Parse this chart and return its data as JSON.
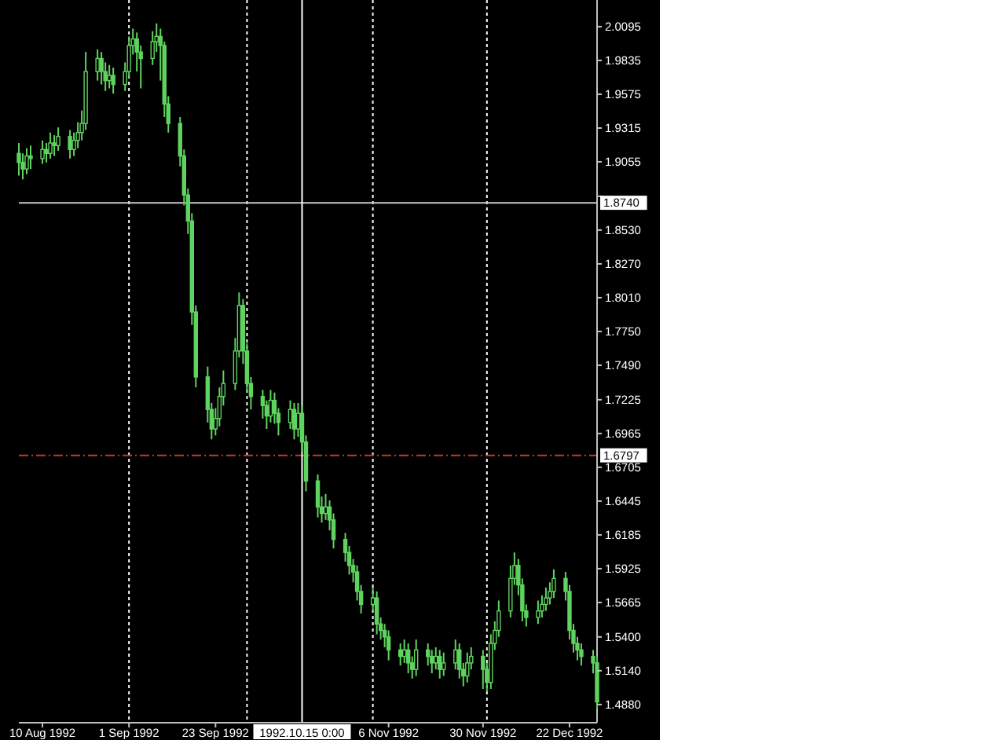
{
  "chart_data": {
    "type": "candlestick",
    "color": "#5fd35f",
    "x": [
      "1992-08-04",
      "1992-08-05",
      "1992-08-06",
      "1992-08-07",
      "1992-08-10",
      "1992-08-11",
      "1992-08-12",
      "1992-08-13",
      "1992-08-14",
      "1992-08-17",
      "1992-08-18",
      "1992-08-19",
      "1992-08-20",
      "1992-08-21",
      "1992-08-24",
      "1992-08-25",
      "1992-08-26",
      "1992-08-27",
      "1992-08-28",
      "1992-08-31",
      "1992-09-01",
      "1992-09-02",
      "1992-09-03",
      "1992-09-04",
      "1992-09-07",
      "1992-09-08",
      "1992-09-09",
      "1992-09-10",
      "1992-09-11",
      "1992-09-14",
      "1992-09-15",
      "1992-09-16",
      "1992-09-17",
      "1992-09-18",
      "1992-09-21",
      "1992-09-22",
      "1992-09-23",
      "1992-09-24",
      "1992-09-25",
      "1992-09-28",
      "1992-09-29",
      "1992-09-30",
      "1992-10-01",
      "1992-10-02",
      "1992-10-05",
      "1992-10-06",
      "1992-10-07",
      "1992-10-08",
      "1992-10-09",
      "1992-10-12",
      "1992-10-13",
      "1992-10-14",
      "1992-10-15",
      "1992-10-16",
      "1992-10-19",
      "1992-10-20",
      "1992-10-21",
      "1992-10-22",
      "1992-10-23",
      "1992-10-26",
      "1992-10-27",
      "1992-10-28",
      "1992-10-29",
      "1992-10-30",
      "1992-11-02",
      "1992-11-03",
      "1992-11-04",
      "1992-11-05",
      "1992-11-06",
      "1992-11-09",
      "1992-11-10",
      "1992-11-11",
      "1992-11-12",
      "1992-11-13",
      "1992-11-16",
      "1992-11-17",
      "1992-11-18",
      "1992-11-19",
      "1992-11-20",
      "1992-11-23",
      "1992-11-24",
      "1992-11-25",
      "1992-11-26",
      "1992-11-27",
      "1992-11-30",
      "1992-12-01",
      "1992-12-02",
      "1992-12-03",
      "1992-12-04",
      "1992-12-07",
      "1992-12-08",
      "1992-12-09",
      "1992-12-10",
      "1992-12-11",
      "1992-12-14",
      "1992-12-15",
      "1992-12-16",
      "1992-12-17",
      "1992-12-18",
      "1992-12-21",
      "1992-12-22",
      "1992-12-23",
      "1992-12-24",
      "1992-12-25",
      "1992-12-28",
      "1992-12-29"
    ],
    "ohlc": [
      [
        1.912,
        1.92,
        1.895,
        1.905
      ],
      [
        1.905,
        1.912,
        1.892,
        1.9
      ],
      [
        1.9,
        1.916,
        1.896,
        1.91
      ],
      [
        1.91,
        1.918,
        1.9,
        1.908
      ],
      [
        1.908,
        1.922,
        1.904,
        1.915
      ],
      [
        1.915,
        1.92,
        1.905,
        1.912
      ],
      [
        1.912,
        1.928,
        1.908,
        1.92
      ],
      [
        1.92,
        1.926,
        1.91,
        1.918
      ],
      [
        1.918,
        1.932,
        1.914,
        1.925
      ],
      [
        1.925,
        1.93,
        1.908,
        1.915
      ],
      [
        1.915,
        1.928,
        1.91,
        1.922
      ],
      [
        1.922,
        1.936,
        1.916,
        1.928
      ],
      [
        1.928,
        1.945,
        1.922,
        1.935
      ],
      [
        1.935,
        1.99,
        1.93,
        1.975
      ],
      [
        1.975,
        1.992,
        1.968,
        1.985
      ],
      [
        1.985,
        1.99,
        1.965,
        1.975
      ],
      [
        1.975,
        1.982,
        1.96,
        1.968
      ],
      [
        1.968,
        1.98,
        1.962,
        1.972
      ],
      [
        1.972,
        1.978,
        1.958,
        1.965
      ],
      [
        1.965,
        1.982,
        1.96,
        1.975
      ],
      [
        1.975,
        2.002,
        1.97,
        1.995
      ],
      [
        1.995,
        2.008,
        1.988,
        2.0
      ],
      [
        2.0,
        2.005,
        1.975,
        1.99
      ],
      [
        1.99,
        1.995,
        1.962,
        1.985
      ],
      [
        1.985,
        2.006,
        1.98,
        1.998
      ],
      [
        1.998,
        2.012,
        1.99,
        2.002
      ],
      [
        2.002,
        2.008,
        1.968,
        1.995
      ],
      [
        1.995,
        1.998,
        1.94,
        1.95
      ],
      [
        1.95,
        1.956,
        1.928,
        1.935
      ],
      [
        1.935,
        1.94,
        1.902,
        1.91
      ],
      [
        1.91,
        1.915,
        1.872,
        1.88
      ],
      [
        1.88,
        1.885,
        1.85,
        1.86
      ],
      [
        1.86,
        1.866,
        1.78,
        1.79
      ],
      [
        1.79,
        1.795,
        1.732,
        1.74
      ],
      [
        1.74,
        1.748,
        1.705,
        1.715
      ],
      [
        1.715,
        1.72,
        1.692,
        1.7
      ],
      [
        1.7,
        1.716,
        1.695,
        1.708
      ],
      [
        1.708,
        1.732,
        1.702,
        1.725
      ],
      [
        1.725,
        1.745,
        1.718,
        1.735
      ],
      [
        1.735,
        1.77,
        1.73,
        1.76
      ],
      [
        1.76,
        1.805,
        1.755,
        1.795
      ],
      [
        1.795,
        1.8,
        1.75,
        1.76
      ],
      [
        1.76,
        1.766,
        1.728,
        1.735
      ],
      [
        1.735,
        1.74,
        1.715,
        1.725
      ],
      [
        1.725,
        1.73,
        1.708,
        1.718
      ],
      [
        1.718,
        1.722,
        1.7,
        1.71
      ],
      [
        1.71,
        1.73,
        1.705,
        1.722
      ],
      [
        1.722,
        1.728,
        1.704,
        1.712
      ],
      [
        1.712,
        1.716,
        1.695,
        1.705
      ],
      [
        1.705,
        1.722,
        1.7,
        1.715
      ],
      [
        1.715,
        1.72,
        1.692,
        1.7
      ],
      [
        1.7,
        1.72,
        1.694,
        1.712
      ],
      [
        1.712,
        1.718,
        1.682,
        1.69
      ],
      [
        1.69,
        1.695,
        1.652,
        1.66
      ],
      [
        1.66,
        1.665,
        1.632,
        1.64
      ],
      [
        1.64,
        1.648,
        1.628,
        1.635
      ],
      [
        1.635,
        1.65,
        1.63,
        1.64
      ],
      [
        1.64,
        1.645,
        1.622,
        1.63
      ],
      [
        1.63,
        1.635,
        1.608,
        1.615
      ],
      [
        1.615,
        1.62,
        1.598,
        1.605
      ],
      [
        1.605,
        1.61,
        1.588,
        1.595
      ],
      [
        1.595,
        1.6,
        1.582,
        1.59
      ],
      [
        1.59,
        1.595,
        1.568,
        1.575
      ],
      [
        1.575,
        1.58,
        1.558,
        1.565
      ],
      [
        1.565,
        1.578,
        1.56,
        1.57
      ],
      [
        1.57,
        1.575,
        1.542,
        1.55
      ],
      [
        1.55,
        1.555,
        1.538,
        1.545
      ],
      [
        1.545,
        1.55,
        1.532,
        1.54
      ],
      [
        1.54,
        1.545,
        1.522,
        1.53
      ],
      [
        1.53,
        1.535,
        1.518,
        1.525
      ],
      [
        1.525,
        1.538,
        1.52,
        1.53
      ],
      [
        1.53,
        1.535,
        1.512,
        1.52
      ],
      [
        1.52,
        1.525,
        1.508,
        1.515
      ],
      [
        1.515,
        1.538,
        1.51,
        1.53
      ],
      [
        1.53,
        1.535,
        1.518,
        1.525
      ],
      [
        1.525,
        1.53,
        1.512,
        1.52
      ],
      [
        1.52,
        1.532,
        1.515,
        1.525
      ],
      [
        1.525,
        1.53,
        1.508,
        1.515
      ],
      [
        1.515,
        1.528,
        1.51,
        1.52
      ],
      [
        1.52,
        1.538,
        1.515,
        1.53
      ],
      [
        1.53,
        1.535,
        1.508,
        1.515
      ],
      [
        1.515,
        1.52,
        1.502,
        1.51
      ],
      [
        1.51,
        1.528,
        1.505,
        1.52
      ],
      [
        1.52,
        1.532,
        1.515,
        1.525
      ],
      [
        1.525,
        1.53,
        1.5,
        1.515
      ],
      [
        1.515,
        1.52,
        1.498,
        1.505
      ],
      [
        1.505,
        1.542,
        1.5,
        1.535
      ],
      [
        1.535,
        1.552,
        1.53,
        1.545
      ],
      [
        1.545,
        1.568,
        1.54,
        1.56
      ],
      [
        1.56,
        1.595,
        1.555,
        1.585
      ],
      [
        1.585,
        1.605,
        1.58,
        1.595
      ],
      [
        1.595,
        1.6,
        1.572,
        1.58
      ],
      [
        1.58,
        1.585,
        1.552,
        1.56
      ],
      [
        1.56,
        1.565,
        1.548,
        1.555
      ],
      [
        1.555,
        1.568,
        1.55,
        1.56
      ],
      [
        1.56,
        1.572,
        1.555,
        1.565
      ],
      [
        1.565,
        1.578,
        1.56,
        1.57
      ],
      [
        1.57,
        1.582,
        1.565,
        1.575
      ],
      [
        1.575,
        1.592,
        1.57,
        1.585
      ],
      [
        1.585,
        1.59,
        1.568,
        1.575
      ],
      [
        1.575,
        1.58,
        1.538,
        1.545
      ],
      [
        1.545,
        1.55,
        1.528,
        1.535
      ],
      [
        1.535,
        1.54,
        1.522,
        1.53
      ],
      [
        1.53,
        1.535,
        1.518,
        1.525
      ],
      [
        1.525,
        1.53,
        1.512,
        1.52
      ],
      [
        1.52,
        1.525,
        1.485,
        1.49
      ]
    ],
    "xlim": [
      "1992-08-04",
      "1992-12-29"
    ],
    "xticks": [
      {
        "value": "1992-08-10",
        "label": "10 Aug 1992"
      },
      {
        "value": "1992-09-01",
        "label": "1 Sep 1992"
      },
      {
        "value": "1992-09-23",
        "label": "23 Sep 1992"
      },
      {
        "value": "1992-11-06",
        "label": "6 Nov 1992"
      },
      {
        "value": "1992-11-30",
        "label": "30 Nov 1992"
      },
      {
        "value": "1992-12-22",
        "label": "22 Dec 1992"
      }
    ],
    "ylim": [
      1.474,
      2.03
    ],
    "yticks": [
      {
        "value": 2.0095,
        "label": "2.0095"
      },
      {
        "value": 1.9835,
        "label": "1.9835"
      },
      {
        "value": 1.9575,
        "label": "1.9575"
      },
      {
        "value": 1.9315,
        "label": "1.9315"
      },
      {
        "value": 1.9055,
        "label": "1.9055"
      },
      {
        "value": 1.879,
        "label": null
      },
      {
        "value": 1.853,
        "label": "1.8530"
      },
      {
        "value": 1.827,
        "label": "1.8270"
      },
      {
        "value": 1.801,
        "label": "1.8010"
      },
      {
        "value": 1.775,
        "label": "1.7750"
      },
      {
        "value": 1.749,
        "label": "1.7490"
      },
      {
        "value": 1.7225,
        "label": "1.7225"
      },
      {
        "value": 1.6965,
        "label": "1.6965"
      },
      {
        "value": 1.6705,
        "label": "1.6705"
      },
      {
        "value": 1.6445,
        "label": "1.6445"
      },
      {
        "value": 1.6185,
        "label": "1.6185"
      },
      {
        "value": 1.5925,
        "label": "1.5925"
      },
      {
        "value": 1.5665,
        "label": "1.5665"
      },
      {
        "value": 1.54,
        "label": "1.5400"
      },
      {
        "value": 1.514,
        "label": "1.5140"
      },
      {
        "value": 1.488,
        "label": "1.4880"
      }
    ],
    "ref_lines": [
      {
        "axis": "x",
        "value": "1992-09-01",
        "color": "#ffffff",
        "line_style": "dotted"
      },
      {
        "axis": "x",
        "value": "1992-10-01",
        "color": "#ffffff",
        "line_style": "dotted"
      },
      {
        "axis": "x",
        "value": "1992-11-02",
        "color": "#ffffff",
        "line_style": "dotted"
      },
      {
        "axis": "x",
        "value": "1992-12-01",
        "color": "#ffffff",
        "line_style": "dotted"
      },
      {
        "axis": "y",
        "value": 1.6797,
        "label": "1.6797",
        "color": "#c0392b",
        "line_style": "dashed"
      },
      {
        "axis": "y",
        "value": 1.874,
        "label": "1.8740",
        "color": "#c8c8c8",
        "line_style": "solid"
      },
      {
        "axis": "x",
        "value": "1992-10-15",
        "label": "1992.10.15 0:00",
        "color": "#ffffff",
        "line_style": "solid"
      }
    ]
  }
}
